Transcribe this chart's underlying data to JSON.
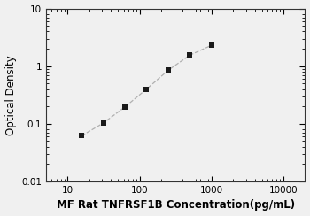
{
  "x": [
    15.625,
    31.25,
    62.5,
    125,
    250,
    500,
    1000
  ],
  "y": [
    0.062,
    0.103,
    0.196,
    0.4,
    0.85,
    1.55,
    2.3
  ],
  "line_color": "#b0b0b0",
  "marker_color": "#1a1a1a",
  "marker": "s",
  "marker_size": 4.5,
  "line_style": "--",
  "line_width": 0.9,
  "xlabel": "MF Rat TNFRSF1B Concentration(pg/mL)",
  "ylabel": "Optical Density",
  "xlim": [
    5,
    20000
  ],
  "ylim": [
    0.01,
    10
  ],
  "xticks": [
    10,
    100,
    1000,
    10000
  ],
  "yticks": [
    0.01,
    0.1,
    1,
    10
  ],
  "xlabel_fontsize": 8.5,
  "ylabel_fontsize": 8.5,
  "xlabel_fontweight": "bold",
  "tick_labelsize": 7.5,
  "background_color": "#f0f0f0",
  "plot_bg_color": "#f0f0f0"
}
